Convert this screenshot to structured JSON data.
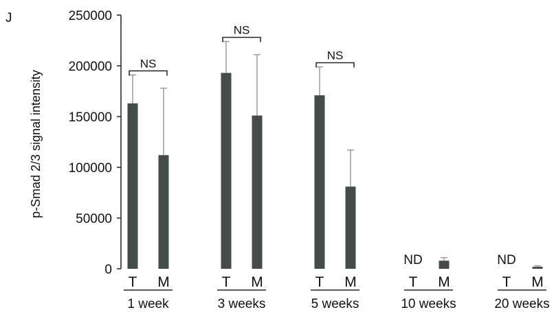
{
  "panel_label": "J",
  "chart_data": {
    "type": "bar",
    "title": "",
    "xlabel": "",
    "ylabel": "p-Smad 2/3 signal intensity",
    "ylim": [
      0,
      250000
    ],
    "yticks": [
      0,
      50000,
      100000,
      150000,
      200000,
      250000
    ],
    "ytick_labels": [
      "0",
      "50000",
      "100000",
      "150000",
      "200000",
      "250000"
    ],
    "grid": false,
    "bar_color": "#454b4b",
    "errorbar_color": "#9a9a9a",
    "groups": [
      {
        "label": "1 week",
        "bars": [
          {
            "condition": "T",
            "value": 163000,
            "error": 28000
          },
          {
            "condition": "M",
            "value": 112000,
            "error": 66000
          }
        ],
        "annotation": "NS"
      },
      {
        "label": "3 weeks",
        "bars": [
          {
            "condition": "T",
            "value": 193000,
            "error": 31000
          },
          {
            "condition": "M",
            "value": 151000,
            "error": 60000
          }
        ],
        "annotation": "NS"
      },
      {
        "label": "5 weeks",
        "bars": [
          {
            "condition": "T",
            "value": 171000,
            "error": 28000
          },
          {
            "condition": "M",
            "value": 81000,
            "error": 36000
          }
        ],
        "annotation": "NS"
      },
      {
        "label": "10 weeks",
        "bars": [
          {
            "condition": "T",
            "value": 0,
            "error": 0,
            "note": "ND"
          },
          {
            "condition": "M",
            "value": 8000,
            "error": 3000
          }
        ],
        "annotation": ""
      },
      {
        "label": "20 weeks",
        "bars": [
          {
            "condition": "T",
            "value": 0,
            "error": 0,
            "note": "ND"
          },
          {
            "condition": "M",
            "value": 2000,
            "error": 1000
          }
        ],
        "annotation": ""
      }
    ]
  }
}
